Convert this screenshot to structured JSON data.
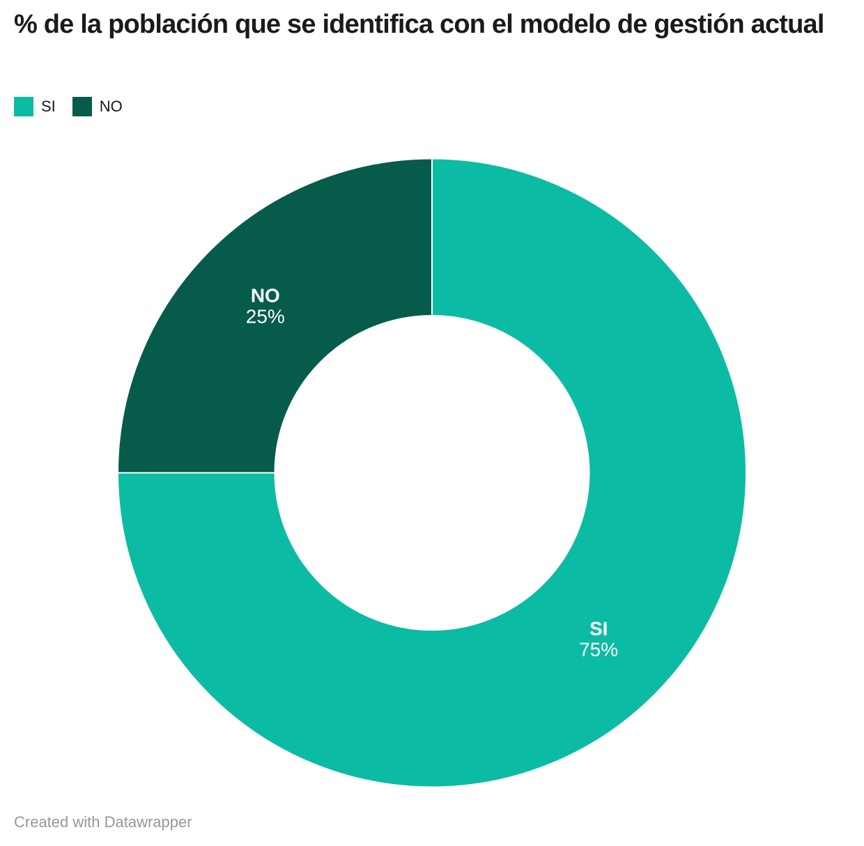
{
  "title": "% de la población que se identifica con el modelo de gestión actual",
  "legend": {
    "items": [
      {
        "label": "SI",
        "color": "#0cbba3"
      },
      {
        "label": "NO",
        "color": "#065b4b"
      }
    ]
  },
  "footer": {
    "attribution": "Created with Datawrapper"
  },
  "chart_data": {
    "type": "pie",
    "subtype": "donut",
    "title": "% de la población que se identifica con el modelo de gestión actual",
    "categories": [
      "SI",
      "NO"
    ],
    "values": [
      75,
      25
    ],
    "value_labels": [
      "75%",
      "25%"
    ],
    "colors": [
      "#0cbba3",
      "#065b4b"
    ],
    "start_angle_deg": 0,
    "direction": "clockwise",
    "donut_hole_ratio": 0.5,
    "slice_separator_color": "#ffffff",
    "label_position": "inside",
    "legend_position": "top-left",
    "attribution": "Created with Datawrapper"
  }
}
